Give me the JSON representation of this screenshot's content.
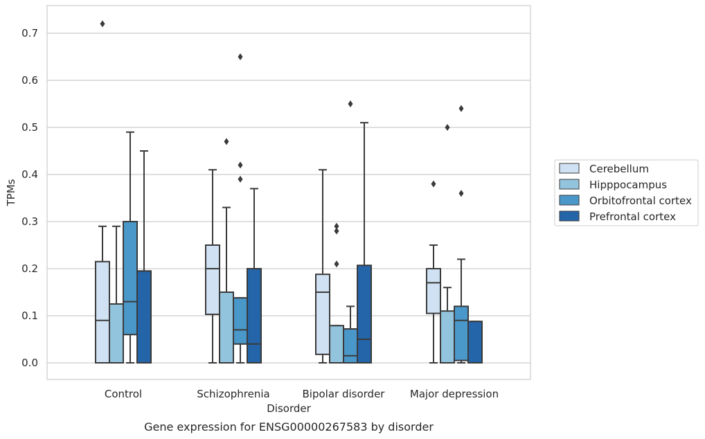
{
  "chart_data": {
    "type": "box",
    "caption": "Gene expression for ENSG00000267583 by disorder",
    "xlabel": "Disorder",
    "ylabel": "TPMs",
    "ylim": [
      -0.035,
      0.76
    ],
    "yticks": [
      0.0,
      0.1,
      0.2,
      0.3,
      0.4,
      0.5,
      0.6,
      0.7
    ],
    "ytick_labels": [
      "0.0",
      "0.1",
      "0.2",
      "0.3",
      "0.4",
      "0.5",
      "0.6",
      "0.7"
    ],
    "categories": [
      "Control",
      "Schizophrenia",
      "Bipolar disorder",
      "Major depression"
    ],
    "grid": "horizontal",
    "legend_position": "right",
    "series": [
      {
        "name": "Cerebellum",
        "color": "#cfe1f2",
        "boxes": [
          {
            "whisker_low": 0.0,
            "q1": 0.0,
            "median": 0.09,
            "q3": 0.215,
            "whisker_high": 0.29,
            "outliers": [
              0.72
            ]
          },
          {
            "whisker_low": 0.0,
            "q1": 0.103,
            "median": 0.2,
            "q3": 0.25,
            "whisker_high": 0.41,
            "outliers": []
          },
          {
            "whisker_low": 0.0,
            "q1": 0.018,
            "median": 0.15,
            "q3": 0.188,
            "whisker_high": 0.41,
            "outliers": []
          },
          {
            "whisker_low": 0.0,
            "q1": 0.105,
            "median": 0.17,
            "q3": 0.2,
            "whisker_high": 0.25,
            "outliers": [
              0.38
            ]
          }
        ]
      },
      {
        "name": "Hipppocampus",
        "color": "#93c4de",
        "boxes": [
          {
            "whisker_low": 0.0,
            "q1": 0.0,
            "median": 0.0,
            "q3": 0.125,
            "whisker_high": 0.29,
            "outliers": []
          },
          {
            "whisker_low": 0.0,
            "q1": 0.0,
            "median": 0.0,
            "q3": 0.15,
            "whisker_high": 0.33,
            "outliers": [
              0.47
            ]
          },
          {
            "whisker_low": 0.0,
            "q1": 0.0,
            "median": 0.0,
            "q3": 0.079,
            "whisker_high": 0.079,
            "outliers": [
              0.21,
              0.28,
              0.29
            ]
          },
          {
            "whisker_low": 0.0,
            "q1": 0.0,
            "median": 0.0,
            "q3": 0.11,
            "whisker_high": 0.16,
            "outliers": [
              0.5
            ]
          }
        ]
      },
      {
        "name": "Orbitofrontal cortex",
        "color": "#4a98c9",
        "boxes": [
          {
            "whisker_low": 0.0,
            "q1": 0.06,
            "median": 0.13,
            "q3": 0.3,
            "whisker_high": 0.49,
            "outliers": []
          },
          {
            "whisker_low": 0.0,
            "q1": 0.04,
            "median": 0.07,
            "q3": 0.138,
            "whisker_high": 0.138,
            "outliers": [
              0.39,
              0.42,
              0.65
            ]
          },
          {
            "whisker_low": 0.0,
            "q1": 0.0,
            "median": 0.015,
            "q3": 0.072,
            "whisker_high": 0.12,
            "outliers": [
              0.55
            ]
          },
          {
            "whisker_low": 0.0,
            "q1": 0.005,
            "median": 0.09,
            "q3": 0.12,
            "whisker_high": 0.22,
            "outliers": [
              0.36,
              0.54
            ]
          }
        ]
      },
      {
        "name": "Prefrontal cortex",
        "color": "#2464a8",
        "boxes": [
          {
            "whisker_low": 0.0,
            "q1": 0.0,
            "median": 0.195,
            "q3": 0.195,
            "whisker_high": 0.45,
            "outliers": []
          },
          {
            "whisker_low": 0.0,
            "q1": 0.0,
            "median": 0.04,
            "q3": 0.2,
            "whisker_high": 0.37,
            "outliers": []
          },
          {
            "whisker_low": 0.0,
            "q1": 0.0,
            "median": 0.05,
            "q3": 0.207,
            "whisker_high": 0.51,
            "outliers": []
          },
          {
            "whisker_low": 0.0,
            "q1": 0.0,
            "median": 0.0,
            "q3": 0.088,
            "whisker_high": 0.088,
            "outliers": []
          }
        ]
      }
    ]
  }
}
